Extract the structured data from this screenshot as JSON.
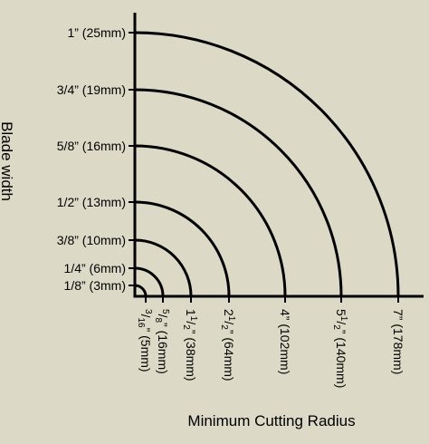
{
  "chart_data": {
    "type": "diagram",
    "y_axis_title": "Blade width",
    "x_axis_title": "Minimum Cutting Radius",
    "y_labels": [
      "1/8” (3mm)",
      "1/4” (6mm)",
      "3/8” (10mm)",
      "1/2” (13mm)",
      "5/8” (16mm)",
      "3/4” (19mm)",
      "1” (25mm)"
    ],
    "x_labels": [
      {
        "main": "3/16” (5mm)",
        "whole": "",
        "num": "3",
        "den": "16",
        "rest": "” (5mm)"
      },
      {
        "main": "5/8” (16mm)",
        "whole": "",
        "num": "5",
        "den": "8",
        "rest": "” (16mm)"
      },
      {
        "main": "1 1/2” (38mm)",
        "whole": "1",
        "num": "1",
        "den": "2",
        "rest": "” (38mm)"
      },
      {
        "main": "2 1/2” (64mm)",
        "whole": "2",
        "num": "1",
        "den": "2",
        "rest": "” (64mm)"
      },
      {
        "main": "4” (102mm)",
        "whole": "4",
        "num": "",
        "den": "",
        "rest": "” (102mm)"
      },
      {
        "main": "5 1/2” (140mm)",
        "whole": "5",
        "num": "1",
        "den": "2",
        "rest": "” (140mm)"
      },
      {
        "main": "7” (178mm)",
        "whole": "7",
        "num": "",
        "den": "",
        "rest": "” (178mm)"
      }
    ],
    "pairs": [
      {
        "blade_width_in": 0.125,
        "blade_width_mm": 3,
        "min_radius_in": 0.1875,
        "min_radius_mm": 5
      },
      {
        "blade_width_in": 0.25,
        "blade_width_mm": 6,
        "min_radius_in": 0.625,
        "min_radius_mm": 16
      },
      {
        "blade_width_in": 0.375,
        "blade_width_mm": 10,
        "min_radius_in": 1.5,
        "min_radius_mm": 38
      },
      {
        "blade_width_in": 0.5,
        "blade_width_mm": 13,
        "min_radius_in": 2.5,
        "min_radius_mm": 64
      },
      {
        "blade_width_in": 0.625,
        "blade_width_mm": 16,
        "min_radius_in": 4,
        "min_radius_mm": 102
      },
      {
        "blade_width_in": 0.75,
        "blade_width_mm": 19,
        "min_radius_in": 5.5,
        "min_radius_mm": 140
      },
      {
        "blade_width_in": 1,
        "blade_width_mm": 25,
        "min_radius_in": 7,
        "min_radius_mm": 178
      }
    ],
    "colors": {
      "background": "#dcd9c6",
      "ink": "#000000"
    }
  }
}
